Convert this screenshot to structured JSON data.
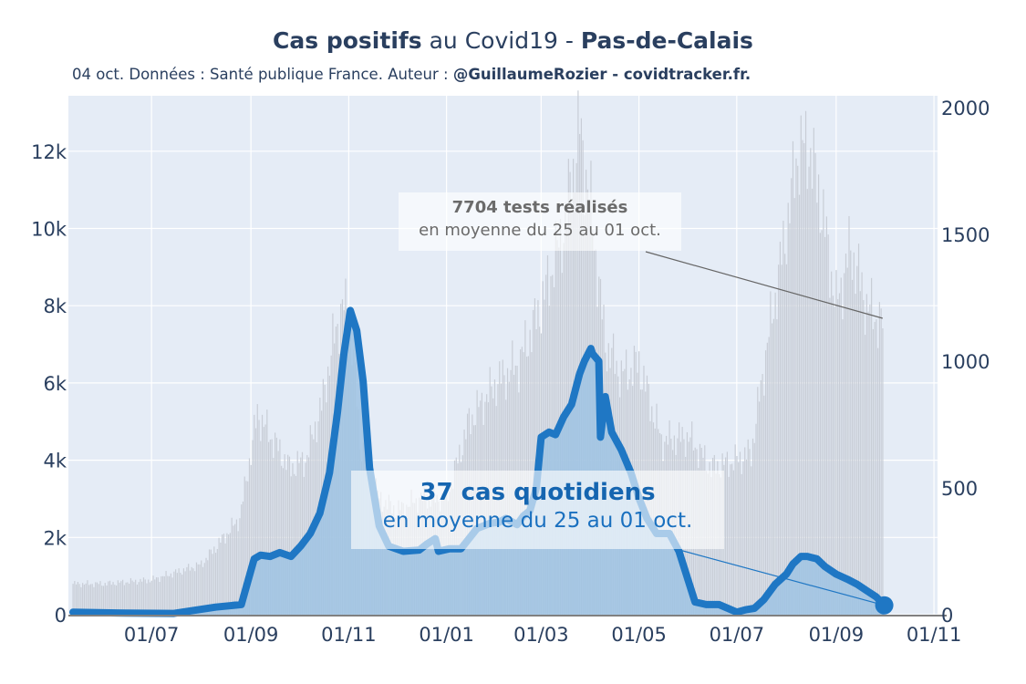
{
  "header": {
    "title_bold_1": "Cas positifs",
    "title_mid": " au Covid19 - ",
    "title_bold_2": "Pas-de-Calais",
    "subtitle_plain": "04 oct. Données : Santé publique France. Auteur : ",
    "subtitle_bold": "@GuillaumeRozier - covidtracker.fr."
  },
  "annotations": {
    "tests_line1": "7704 tests réalisés",
    "tests_line2": "en moyenne du 25 au 01 oct.",
    "cases_line1": "37 cas quotidiens",
    "cases_line2": "en moyenne du 25 au 01 oct."
  },
  "colors": {
    "plot_bg": "#e5ecf6",
    "tests_fill": "#c8cdd6",
    "cases_line": "#1f77c4",
    "cases_fill": "#9fc3e3",
    "text": "#2a3f5f"
  },
  "chart_data": {
    "type": "line",
    "title": "Cas positifs au Covid19 - Pas-de-Calais",
    "x_ticks": [
      "01/07",
      "01/09",
      "01/11",
      "01/01",
      "01/03",
      "01/05",
      "01/07",
      "01/09",
      "01/11"
    ],
    "y_left_ticks": [
      "0",
      "2k",
      "4k",
      "6k",
      "8k",
      "10k",
      "12k"
    ],
    "y_right_ticks": [
      "0",
      "500",
      "1000",
      "1500",
      "2000"
    ],
    "y_left_range": [
      0,
      13200
    ],
    "y_right_range": [
      0,
      2000
    ],
    "grid": true,
    "series": [
      {
        "axis": "left",
        "style": "bars",
        "x": [
          "2020-05-13",
          "2020-06-01",
          "2020-07-01",
          "2020-08-01",
          "2020-08-25",
          "2020-09-05",
          "2020-09-15",
          "2020-09-25",
          "2020-10-05",
          "2020-10-15",
          "2020-10-22",
          "2020-10-28",
          "2020-11-02",
          "2020-11-08",
          "2020-11-20",
          "2020-12-01",
          "2020-12-15",
          "2021-01-01",
          "2021-01-15",
          "2021-02-01",
          "2021-02-15",
          "2021-03-01",
          "2021-03-15",
          "2021-03-25",
          "2021-04-01",
          "2021-04-10",
          "2021-04-20",
          "2021-05-01",
          "2021-05-15",
          "2021-06-01",
          "2021-06-15",
          "2021-07-01",
          "2021-07-10",
          "2021-07-20",
          "2021-08-01",
          "2021-08-08",
          "2021-08-15",
          "2021-08-22",
          "2021-09-01",
          "2021-09-10",
          "2021-09-20",
          "2021-09-30"
        ],
        "values": [
          800,
          800,
          900,
          1300,
          2500,
          5200,
          4500,
          3800,
          4000,
          5400,
          7000,
          8000,
          7600,
          4500,
          3000,
          2700,
          3000,
          3000,
          5000,
          6000,
          6500,
          8000,
          10000,
          12600,
          10500,
          7000,
          6200,
          6500,
          4500,
          4600,
          3800,
          4000,
          4200,
          7000,
          10000,
          12000,
          12100,
          10800,
          8000,
          9500,
          8000,
          7500
        ]
      },
      {
        "axis": "right",
        "name": "cas",
        "style": "line",
        "x": [
          "2020-05-13",
          "2020-06-15",
          "2020-07-15",
          "2020-08-10",
          "2020-08-26",
          "2020-09-03",
          "2020-09-07",
          "2020-09-13",
          "2020-09-19",
          "2020-09-26",
          "2020-10-02",
          "2020-10-08",
          "2020-10-14",
          "2020-10-20",
          "2020-10-25",
          "2020-10-29",
          "2020-11-02",
          "2020-11-06",
          "2020-11-10",
          "2020-11-14",
          "2020-11-20",
          "2020-11-26",
          "2020-12-05",
          "2020-12-15",
          "2020-12-20",
          "2020-12-25",
          "2020-12-27",
          "2021-01-03",
          "2021-01-10",
          "2021-01-20",
          "2021-01-28",
          "2021-02-03",
          "2021-02-07",
          "2021-02-14",
          "2021-02-18",
          "2021-02-22",
          "2021-02-26",
          "2021-03-01",
          "2021-03-06",
          "2021-03-10",
          "2021-03-15",
          "2021-03-20",
          "2021-03-25",
          "2021-03-28",
          "2021-04-01",
          "2021-04-02",
          "2021-04-06",
          "2021-04-07",
          "2021-04-10",
          "2021-04-14",
          "2021-04-20",
          "2021-04-26",
          "2021-05-01",
          "2021-05-06",
          "2021-05-12",
          "2021-05-20",
          "2021-05-26",
          "2021-06-05",
          "2021-06-12",
          "2021-06-20",
          "2021-07-01",
          "2021-07-07",
          "2021-07-12",
          "2021-07-18",
          "2021-07-25",
          "2021-08-01",
          "2021-08-05",
          "2021-08-10",
          "2021-08-14",
          "2021-08-20",
          "2021-08-25",
          "2021-09-01",
          "2021-09-08",
          "2021-09-14",
          "2021-09-20",
          "2021-09-26",
          "2021-10-01"
        ],
        "values": [
          10,
          6,
          5,
          30,
          40,
          220,
          235,
          230,
          245,
          230,
          270,
          320,
          400,
          560,
          800,
          1030,
          1200,
          1120,
          920,
          580,
          350,
          270,
          250,
          255,
          280,
          300,
          250,
          260,
          260,
          340,
          360,
          365,
          380,
          355,
          390,
          410,
          500,
          700,
          720,
          710,
          780,
          830,
          950,
          1000,
          1050,
          1030,
          1000,
          700,
          860,
          720,
          650,
          560,
          460,
          380,
          320,
          320,
          250,
          50,
          40,
          40,
          10,
          20,
          25,
          60,
          120,
          160,
          200,
          230,
          230,
          220,
          190,
          160,
          140,
          120,
          95,
          70,
          37
        ]
      }
    ],
    "annotations": [
      {
        "text": "7704 tests réalisés en moyenne du 25 au 01 oct.",
        "points_to": "tests"
      },
      {
        "text": "37 cas quotidiens en moyenne du 25 au 01 oct.",
        "points_to": "cas"
      }
    ]
  }
}
